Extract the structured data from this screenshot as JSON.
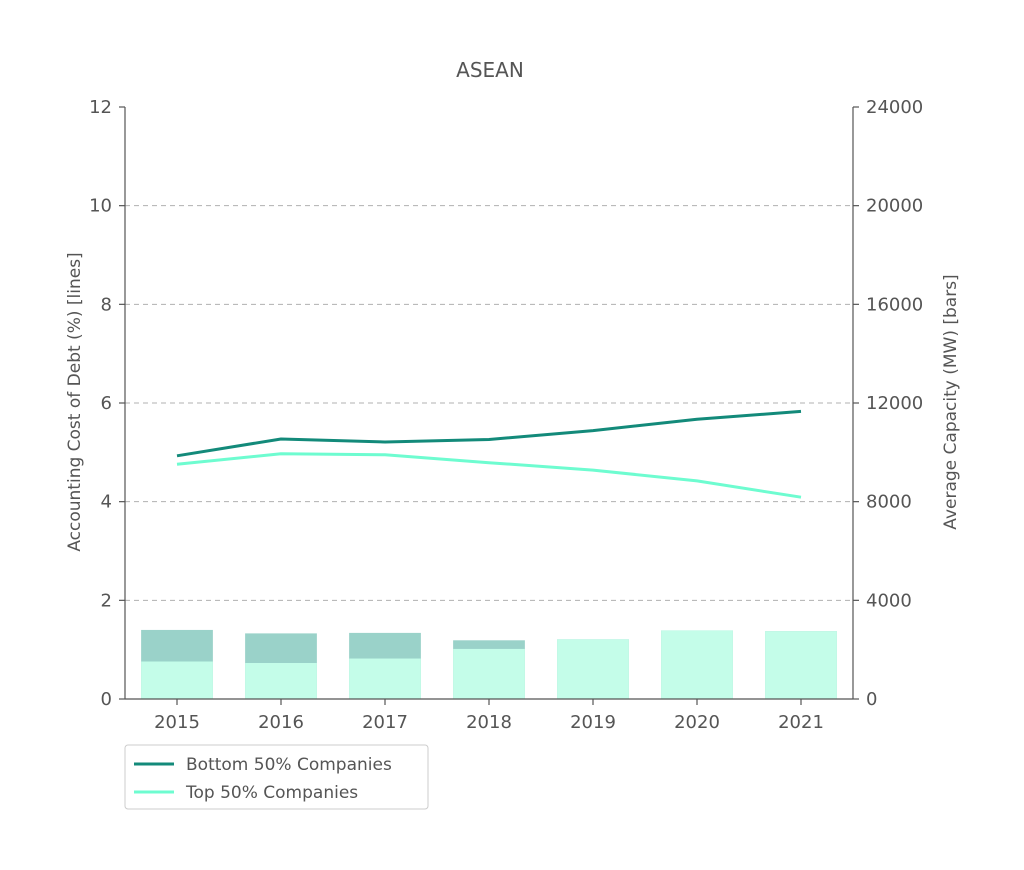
{
  "chart_data": {
    "type": "line",
    "title": "ASEAN",
    "xlabel": "",
    "ylabel_left": "Accounting Cost of Debt (%)  [lines]",
    "ylabel_right": "Average Capacity (MW) [bars]",
    "categories": [
      "2015",
      "2016",
      "2017",
      "2018",
      "2019",
      "2020",
      "2021"
    ],
    "ylim_left": [
      0,
      12
    ],
    "yticks_left": [
      0,
      2,
      4,
      6,
      8,
      10,
      12
    ],
    "ylim_right": [
      0,
      24000
    ],
    "yticks_right": [
      0,
      4000,
      8000,
      12000,
      16000,
      20000,
      24000
    ],
    "grid": "horizontal dashed",
    "legend_position": "below-left",
    "series": [
      {
        "name": "Bottom 50% Companies",
        "kind": "line",
        "axis": "left",
        "color": "#138a7a",
        "values": [
          4.93,
          5.27,
          5.21,
          5.26,
          5.44,
          5.67,
          5.83
        ]
      },
      {
        "name": "Top 50% Companies",
        "kind": "line",
        "axis": "left",
        "color": "#6efcd0",
        "values": [
          4.76,
          4.97,
          4.95,
          4.79,
          4.64,
          4.42,
          4.09
        ]
      }
    ],
    "bars": [
      {
        "kind": "bar",
        "axis": "right",
        "color": "#9ad2c9",
        "values": [
          2800,
          2660,
          2680,
          2380,
          2420,
          2780,
          2750
        ]
      },
      {
        "kind": "bar",
        "axis": "right",
        "color": "#c4fde9",
        "values": [
          1520,
          1460,
          1640,
          2030,
          2420,
          2780,
          2750
        ]
      }
    ]
  }
}
